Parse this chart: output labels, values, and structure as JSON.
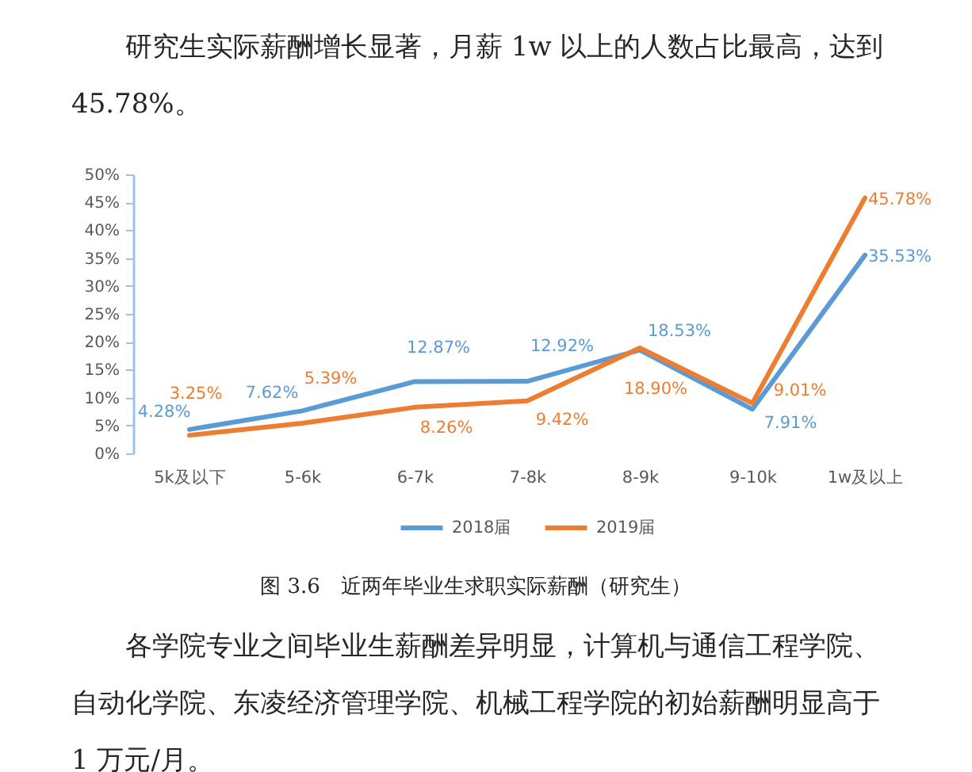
{
  "chart_data": {
    "type": "line",
    "title": "图 3.6　近两年毕业生求职实际薪酬（研究生）",
    "annotations": [
      "研究生实际薪酬增长显著，月薪 1w 以上的人数占比最高，达到45.78%。",
      "各学院专业之间毕业生薪酬差异明显，计算机与通信工程学院、自动化学院、东凌经济管理学院、机械工程学院的初始薪酬明显高于 1 万元/月。"
    ],
    "categories": [
      "5k及以下",
      "5-6k",
      "6-7k",
      "7-8k",
      "8-9k",
      "9-10k",
      "1w及以上"
    ],
    "series": [
      {
        "name": "2018届",
        "color": "#5b9bd5",
        "values": [
          4.28,
          7.62,
          12.87,
          12.92,
          18.53,
          7.91,
          35.53
        ],
        "value_labels": [
          "4.28%",
          "7.62%",
          "12.87%",
          "12.92%",
          "18.53%",
          "7.91%",
          "35.53%"
        ]
      },
      {
        "name": "2019届",
        "color": "#ed7d31",
        "values": [
          3.25,
          5.39,
          8.26,
          9.42,
          18.9,
          9.01,
          45.78
        ],
        "value_labels": [
          "3.25%",
          "5.39%",
          "8.26%",
          "9.42%",
          "18.90%",
          "9.01%",
          "45.78%"
        ]
      }
    ],
    "ylim": [
      0,
      50
    ],
    "yticks": [
      {
        "value": 0,
        "label": "0%"
      },
      {
        "value": 5,
        "label": "5%"
      },
      {
        "value": 10,
        "label": "10%"
      },
      {
        "value": 15,
        "label": "15%"
      },
      {
        "value": 20,
        "label": "20%"
      },
      {
        "value": 25,
        "label": "25%"
      },
      {
        "value": 30,
        "label": "30%"
      },
      {
        "value": 35,
        "label": "35%"
      },
      {
        "value": 40,
        "label": "40%"
      },
      {
        "value": 45,
        "label": "45%"
      },
      {
        "value": 50,
        "label": "50%"
      }
    ],
    "legend": "bottom"
  }
}
